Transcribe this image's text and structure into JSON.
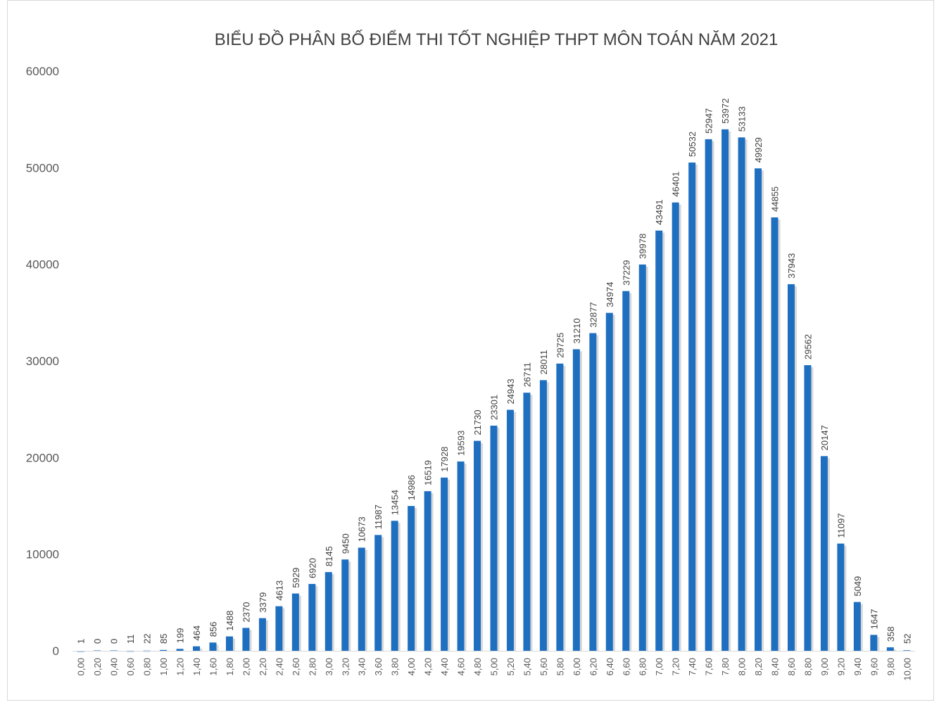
{
  "chart_data": {
    "type": "bar",
    "title": "BIỂU ĐỒ PHÂN BỐ ĐIỂM THI TỐT NGHIỆP THPT MÔN TOÁN NĂM 2021",
    "xlabel": "",
    "ylabel": "",
    "ylim": [
      0,
      60000
    ],
    "yticks": [
      "0",
      "10000",
      "20000",
      "30000",
      "40000",
      "50000",
      "60000"
    ],
    "grid": false,
    "bar_color": "#1f6fc1",
    "categories": [
      "0,00",
      "0,20",
      "0,40",
      "0,60",
      "0,80",
      "1,00",
      "1,20",
      "1,40",
      "1,60",
      "1,80",
      "2,00",
      "2,20",
      "2,40",
      "2,60",
      "2,80",
      "3,00",
      "3,20",
      "3,40",
      "3,60",
      "3,80",
      "4,00",
      "4,20",
      "4,40",
      "4,60",
      "4,80",
      "5,00",
      "5,20",
      "5,40",
      "5,60",
      "5,80",
      "6,00",
      "6,20",
      "6,40",
      "6,60",
      "6,80",
      "7,00",
      "7,20",
      "7,40",
      "7,60",
      "7,80",
      "8,00",
      "8,20",
      "8,40",
      "8,60",
      "8,80",
      "9,00",
      "9,20",
      "9,40",
      "9,60",
      "9,80",
      "10,00"
    ],
    "values": [
      1,
      0,
      0,
      11,
      22,
      85,
      199,
      464,
      856,
      1488,
      2370,
      3379,
      4613,
      5929,
      6920,
      8145,
      9450,
      10673,
      11987,
      13454,
      14986,
      16519,
      17928,
      19593,
      21730,
      23301,
      24943,
      26711,
      28011,
      29725,
      31210,
      32877,
      34974,
      37229,
      39978,
      43491,
      46401,
      50532,
      52947,
      53972,
      53133,
      49929,
      44855,
      37943,
      29562,
      20147,
      11097,
      5049,
      1647,
      358,
      52
    ]
  }
}
